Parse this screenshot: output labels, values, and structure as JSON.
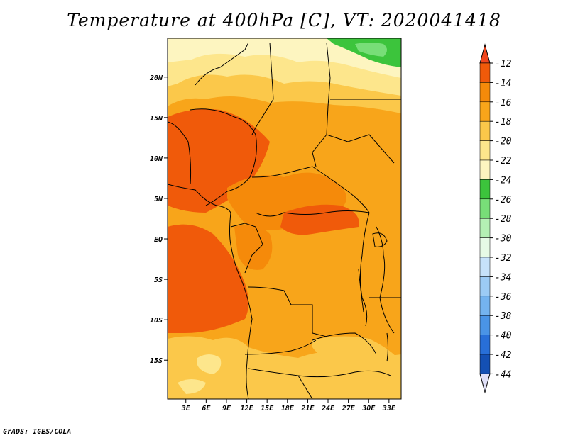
{
  "title": "Temperature at 400hPa [C], VT: 2020041418",
  "credit": "GrADS: IGES/COLA",
  "chart_data": {
    "type": "map",
    "variable": "Temperature",
    "level": "400hPa",
    "units": "C",
    "valid_time": "2020041418",
    "lat_ticks": [
      "20N",
      "15N",
      "10N",
      "5N",
      "EQ",
      "5S",
      "10S",
      "15S"
    ],
    "lat_values": [
      20,
      15,
      10,
      5,
      0,
      -5,
      -10,
      -15
    ],
    "lon_ticks": [
      "3E",
      "6E",
      "9E",
      "12E",
      "15E",
      "18E",
      "21E",
      "24E",
      "27E",
      "30E",
      "33E"
    ],
    "lon_values": [
      3,
      6,
      9,
      12,
      15,
      18,
      21,
      24,
      27,
      30,
      33
    ],
    "lat_range": [
      -19.8,
      24.8
    ],
    "lon_range": [
      0.3,
      34.8
    ],
    "colorbar": {
      "labels": [
        "-12",
        "-14",
        "-16",
        "-18",
        "-20",
        "-22",
        "-24",
        "-26",
        "-28",
        "-30",
        "-32",
        "-34",
        "-36",
        "-38",
        "-40",
        "-42",
        "-44"
      ],
      "colors": [
        "#f05a0a",
        "#f58a0a",
        "#f8a51a",
        "#fbc84a",
        "#fde68c",
        "#fdf5c0",
        "#3cc43c",
        "#78de78",
        "#b4f0b4",
        "#e6fae6",
        "#c6e2fa",
        "#9ccbf5",
        "#74b3ef",
        "#4a94e6",
        "#286fd8",
        "#1450b4",
        "#0a1a78"
      ],
      "top_triangle_color": "#f0461e",
      "bottom_triangle_color": "#e0e0f8"
    }
  }
}
